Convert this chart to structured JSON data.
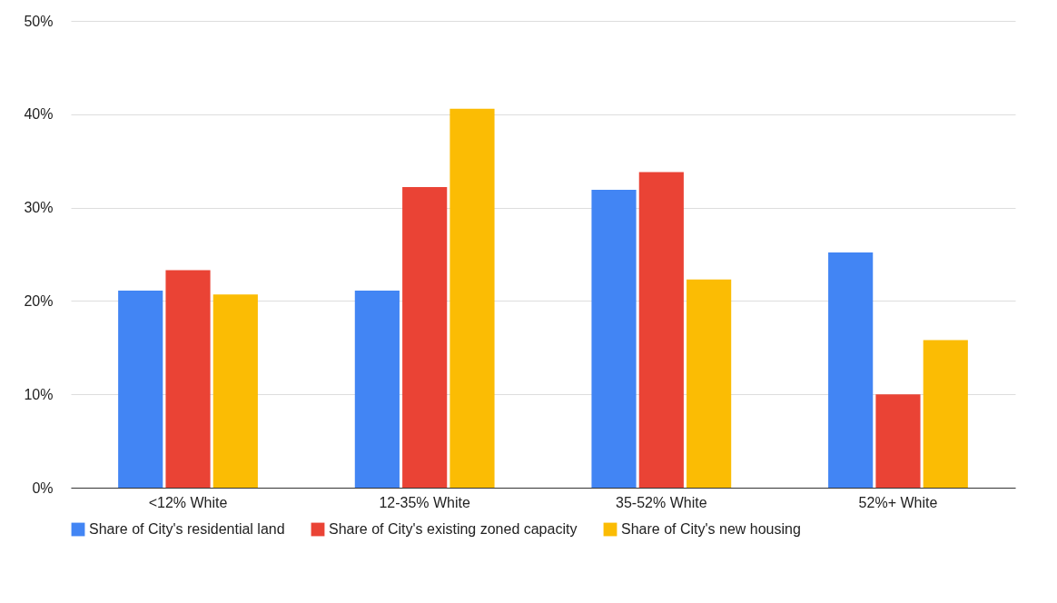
{
  "chart_data": {
    "type": "bar",
    "categories": [
      "<12% White",
      "12-35% White",
      "35-52% White",
      "52%+ White"
    ],
    "series": [
      {
        "name": "Share of City's residential land",
        "color": "#4285f4",
        "values": [
          21.1,
          21.1,
          31.9,
          25.2
        ]
      },
      {
        "name": "Share of City's existing zoned capacity",
        "color": "#ea4335",
        "values": [
          23.3,
          32.2,
          33.8,
          10.0
        ]
      },
      {
        "name": "Share of City's new housing",
        "color": "#fbbc04",
        "values": [
          20.7,
          40.6,
          22.3,
          15.8
        ]
      }
    ],
    "ylim": [
      0,
      50
    ],
    "yticks": [
      {
        "value": 0,
        "label": "0%"
      },
      {
        "value": 10,
        "label": "10%"
      },
      {
        "value": 20,
        "label": "20%"
      },
      {
        "value": 30,
        "label": "30%"
      },
      {
        "value": 40,
        "label": "40%"
      },
      {
        "value": 50,
        "label": "50%"
      }
    ],
    "grid": "y",
    "legend": "bottom"
  }
}
